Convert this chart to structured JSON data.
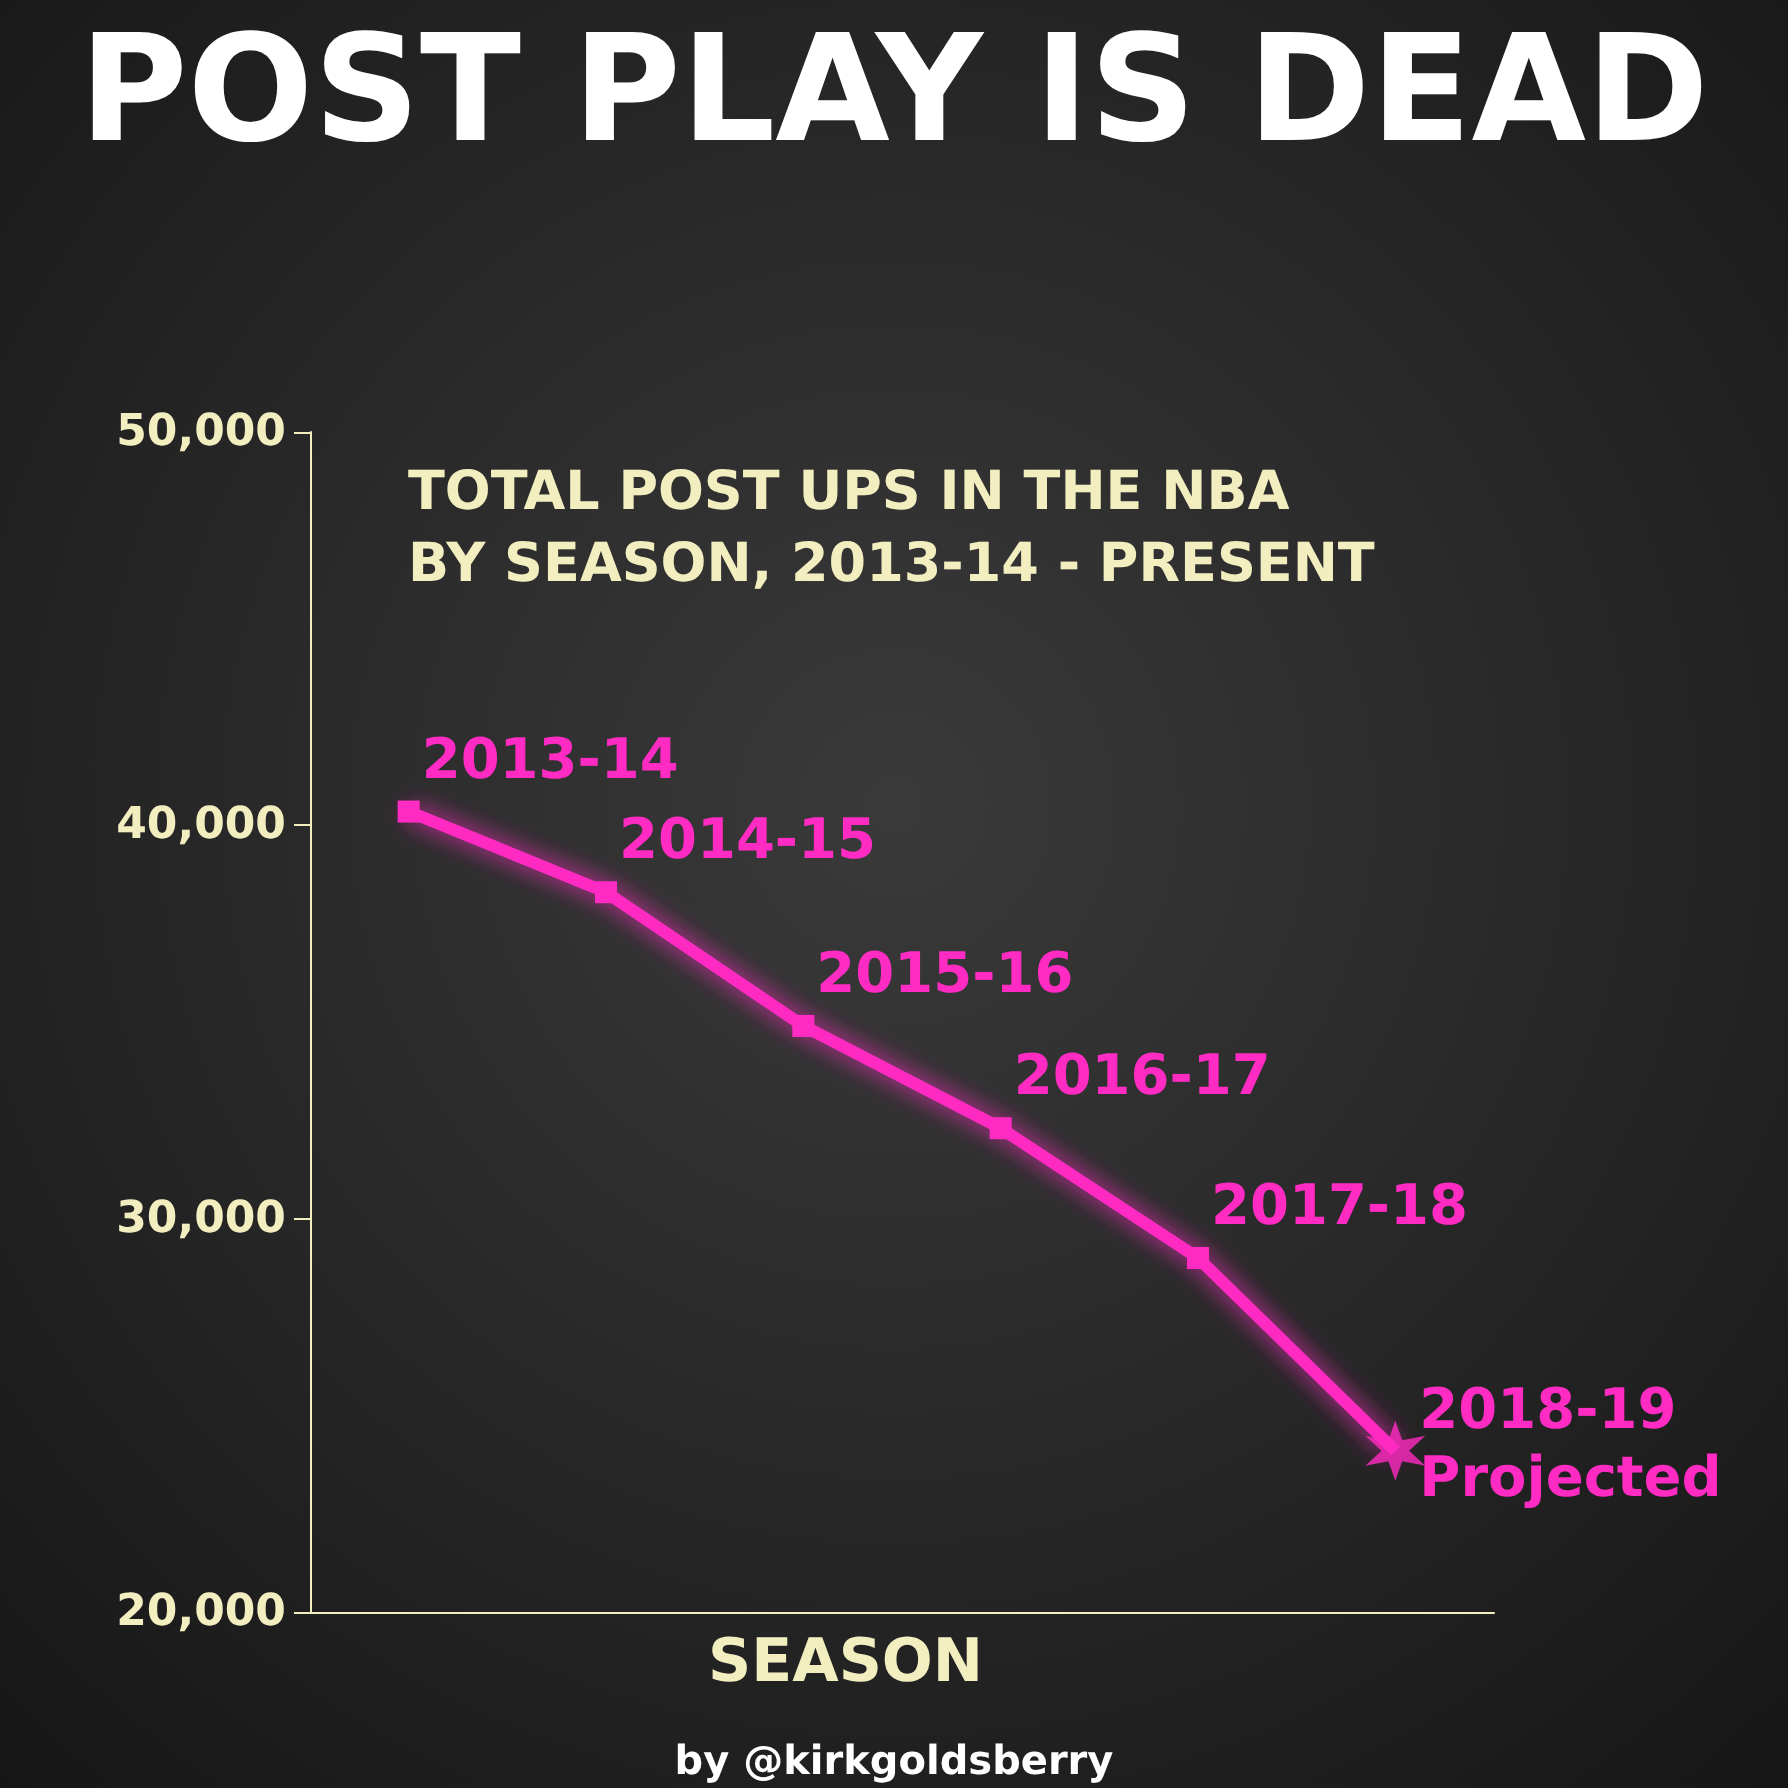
{
  "chart_data": {
    "type": "line",
    "title": "POST PLAY IS DEAD",
    "subtitle": "TOTAL POST UPS IN THE NBA\nBY SEASON, 2013-14 - PRESENT",
    "xlabel": "SEASON",
    "categories": [
      null,
      null,
      null,
      null,
      null,
      null
    ],
    "series": [
      {
        "color": "#ff2bc2",
        "values": [
          40350,
          38300,
          34900,
          32300,
          29000,
          24100
        ],
        "value_labels": [
          "2013-14",
          "2014-15",
          "2015-16",
          "2016-17",
          "2017-18",
          "2018-19\nProjected"
        ],
        "marker": "square"
      },
      {
        "type": "scatter",
        "color": "#ff2bc2",
        "values": [
          null,
          null,
          null,
          null,
          null,
          24100
        ],
        "marker": "cross"
      }
    ],
    "ylim": [
      20000,
      50000
    ],
    "yticks": [
      {
        "value": 20000,
        "label": "20,000"
      },
      {
        "value": 30000,
        "label": "30,000"
      },
      {
        "value": 40000,
        "label": "40,000"
      },
      {
        "value": 50000,
        "label": "50,000"
      }
    ],
    "tick_labels": "y",
    "grid": false,
    "annotations": [
      "by @kirkgoldsberry"
    ]
  }
}
